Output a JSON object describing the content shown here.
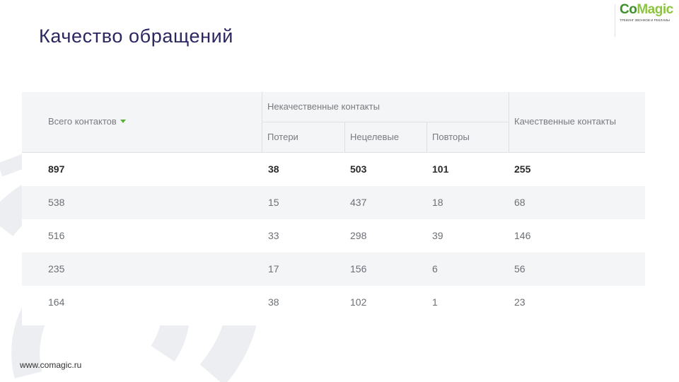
{
  "slide": {
    "title": "Качество обращений"
  },
  "logo": {
    "text_a": "Co",
    "text_b": "Magic",
    "tagline": "ТРЕКИНГ ЗВОНКОВ И РЕКЛАМЫ",
    "badge": ""
  },
  "table": {
    "headers": {
      "total": "Всего контактов",
      "group_poor": "Некачественные контакты",
      "losses": "Потери",
      "nontarget": "Нецелевые",
      "repeats": "Повторы",
      "quality": "Качественные контакты"
    },
    "rows": [
      [
        "897",
        "38",
        "503",
        "101",
        "255"
      ],
      [
        "538",
        "15",
        "437",
        "18",
        "68"
      ],
      [
        "516",
        "33",
        "298",
        "39",
        "146"
      ],
      [
        "235",
        "17",
        "156",
        "6",
        "56"
      ],
      [
        "164",
        "38",
        "102",
        "1",
        "23"
      ]
    ]
  },
  "footer": {
    "url": "www.comagic.ru"
  }
}
